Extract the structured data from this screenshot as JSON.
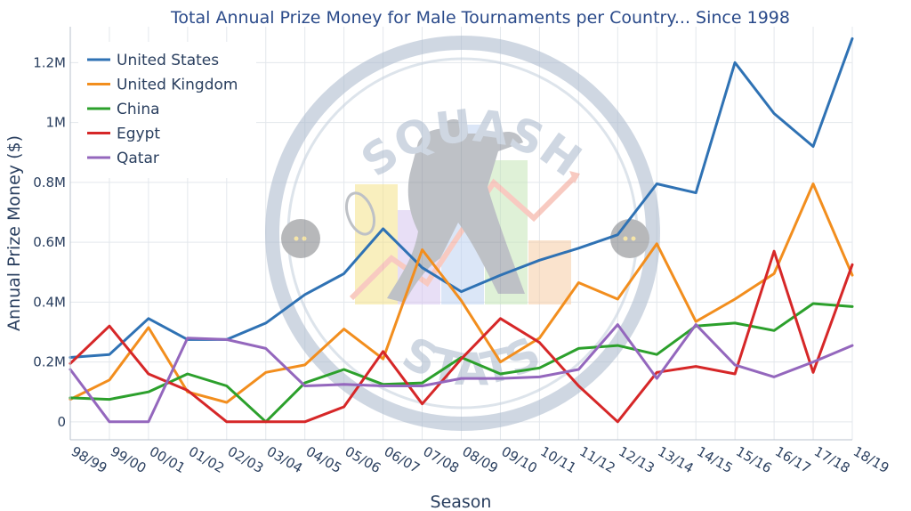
{
  "chart_data": {
    "type": "line",
    "title": "Total Annual Prize Money for Male Tournaments per Country... Since 1998",
    "xlabel": "Season",
    "ylabel": "Annual Prize Money ($)",
    "categories": [
      "98/99",
      "99/00",
      "00/01",
      "01/02",
      "02/03",
      "03/04",
      "04/05",
      "05/06",
      "06/07",
      "07/08",
      "08/09",
      "09/10",
      "10/11",
      "11/12",
      "12/13",
      "13/14",
      "14/15",
      "15/16",
      "16/17",
      "17/18",
      "18/19"
    ],
    "ylim": [
      -60000,
      1320000
    ],
    "yticks": [
      {
        "value": 0,
        "label": "0"
      },
      {
        "value": 200000,
        "label": "0.2M"
      },
      {
        "value": 400000,
        "label": "0.4M"
      },
      {
        "value": 600000,
        "label": "0.6M"
      },
      {
        "value": 800000,
        "label": "0.8M"
      },
      {
        "value": 1000000,
        "label": "1M"
      },
      {
        "value": 1200000,
        "label": "1.2M"
      }
    ],
    "grid": true,
    "legend_position": "top-left",
    "series": [
      {
        "name": "United States",
        "color": "#2f72b4",
        "values": [
          215000,
          225000,
          345000,
          275000,
          275000,
          330000,
          425000,
          495000,
          645000,
          515000,
          435000,
          490000,
          540000,
          580000,
          625000,
          795000,
          765000,
          1200000,
          1030000,
          920000,
          1280000
        ]
      },
      {
        "name": "United Kingdom",
        "color": "#f28e1e",
        "values": [
          75000,
          140000,
          315000,
          100000,
          65000,
          165000,
          190000,
          310000,
          210000,
          575000,
          405000,
          200000,
          280000,
          465000,
          410000,
          595000,
          335000,
          410000,
          495000,
          795000,
          490000
        ]
      },
      {
        "name": "China",
        "color": "#2ca02c",
        "values": [
          80000,
          75000,
          100000,
          160000,
          120000,
          0,
          130000,
          175000,
          125000,
          130000,
          215000,
          160000,
          180000,
          245000,
          255000,
          225000,
          320000,
          330000,
          305000,
          395000,
          385000
        ]
      },
      {
        "name": "Egypt",
        "color": "#d62728",
        "values": [
          195000,
          320000,
          160000,
          105000,
          0,
          0,
          0,
          50000,
          235000,
          60000,
          210000,
          345000,
          265000,
          120000,
          0,
          165000,
          185000,
          160000,
          570000,
          165000,
          525000
        ]
      },
      {
        "name": "Qatar",
        "color": "#9467bd",
        "values": [
          175000,
          0,
          0,
          280000,
          275000,
          245000,
          120000,
          125000,
          120000,
          120000,
          145000,
          145000,
          150000,
          175000,
          325000,
          145000,
          325000,
          190000,
          150000,
          200000,
          255000
        ]
      }
    ]
  },
  "watermark": {
    "top_text": "SQUASH",
    "bottom_text": "STATS",
    "circle_color": "#a9b8cc",
    "bar_colors": [
      "#f5e28a",
      "#d7c5ef",
      "#bfd3f2",
      "#c6e6b8",
      "#f7cda6"
    ]
  }
}
